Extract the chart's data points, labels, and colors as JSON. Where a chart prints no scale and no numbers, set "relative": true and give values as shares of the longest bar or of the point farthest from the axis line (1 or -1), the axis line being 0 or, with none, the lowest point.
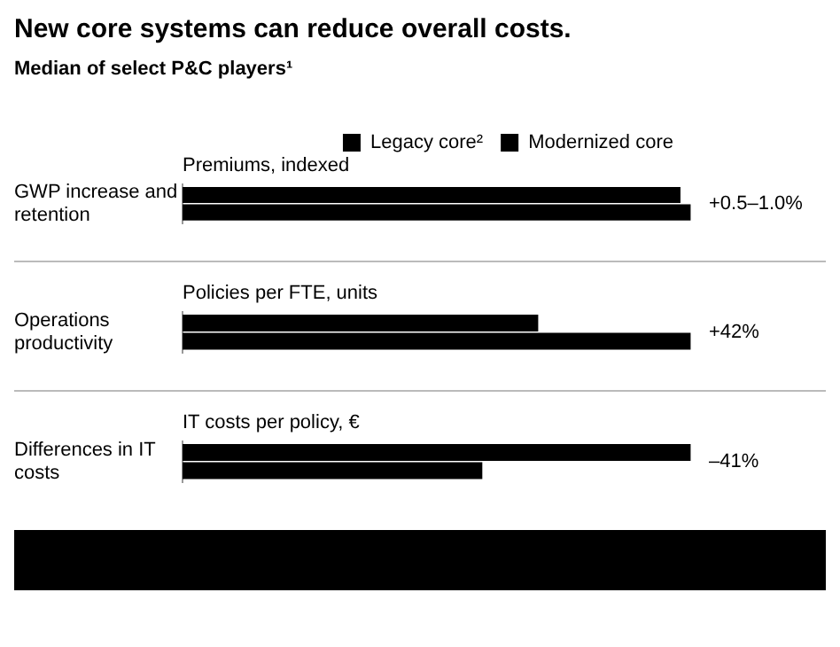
{
  "chart_data": [
    {
      "type": "bar",
      "orientation": "horizontal",
      "relative": true,
      "title": "New core systems can reduce overall costs.",
      "subtitle": "Median of select P&C players¹",
      "xlabel": "Premiums, indexed",
      "categories": [
        "GWP increase and retention"
      ],
      "legend": "top right",
      "annotations": [
        "+0.5–1.0%"
      ],
      "series": [
        {
          "name": "Legacy core²",
          "color": "#000000",
          "values": [
            0.98
          ]
        },
        {
          "name": "Modernized core",
          "color": "#000000",
          "values": [
            1.0
          ]
        }
      ]
    },
    {
      "type": "bar",
      "orientation": "horizontal",
      "relative": true,
      "xlabel": "Policies per FTE, units",
      "categories": [
        "Operations productivity"
      ],
      "annotations": [
        "+42%"
      ],
      "series": [
        {
          "color": "#000000",
          "values": [
            0.7
          ]
        },
        {
          "color": "#000000",
          "values": [
            1.0
          ]
        }
      ]
    },
    {
      "type": "bar",
      "orientation": "horizontal",
      "relative": true,
      "xlabel": "IT costs per policy, €",
      "categories": [
        "Differences in IT costs"
      ],
      "annotations": [
        "–41%"
      ],
      "series": [
        {
          "color": "#000000",
          "values": [
            1.0
          ]
        },
        {
          "color": "#000000",
          "values": [
            0.59
          ]
        }
      ]
    }
  ]
}
